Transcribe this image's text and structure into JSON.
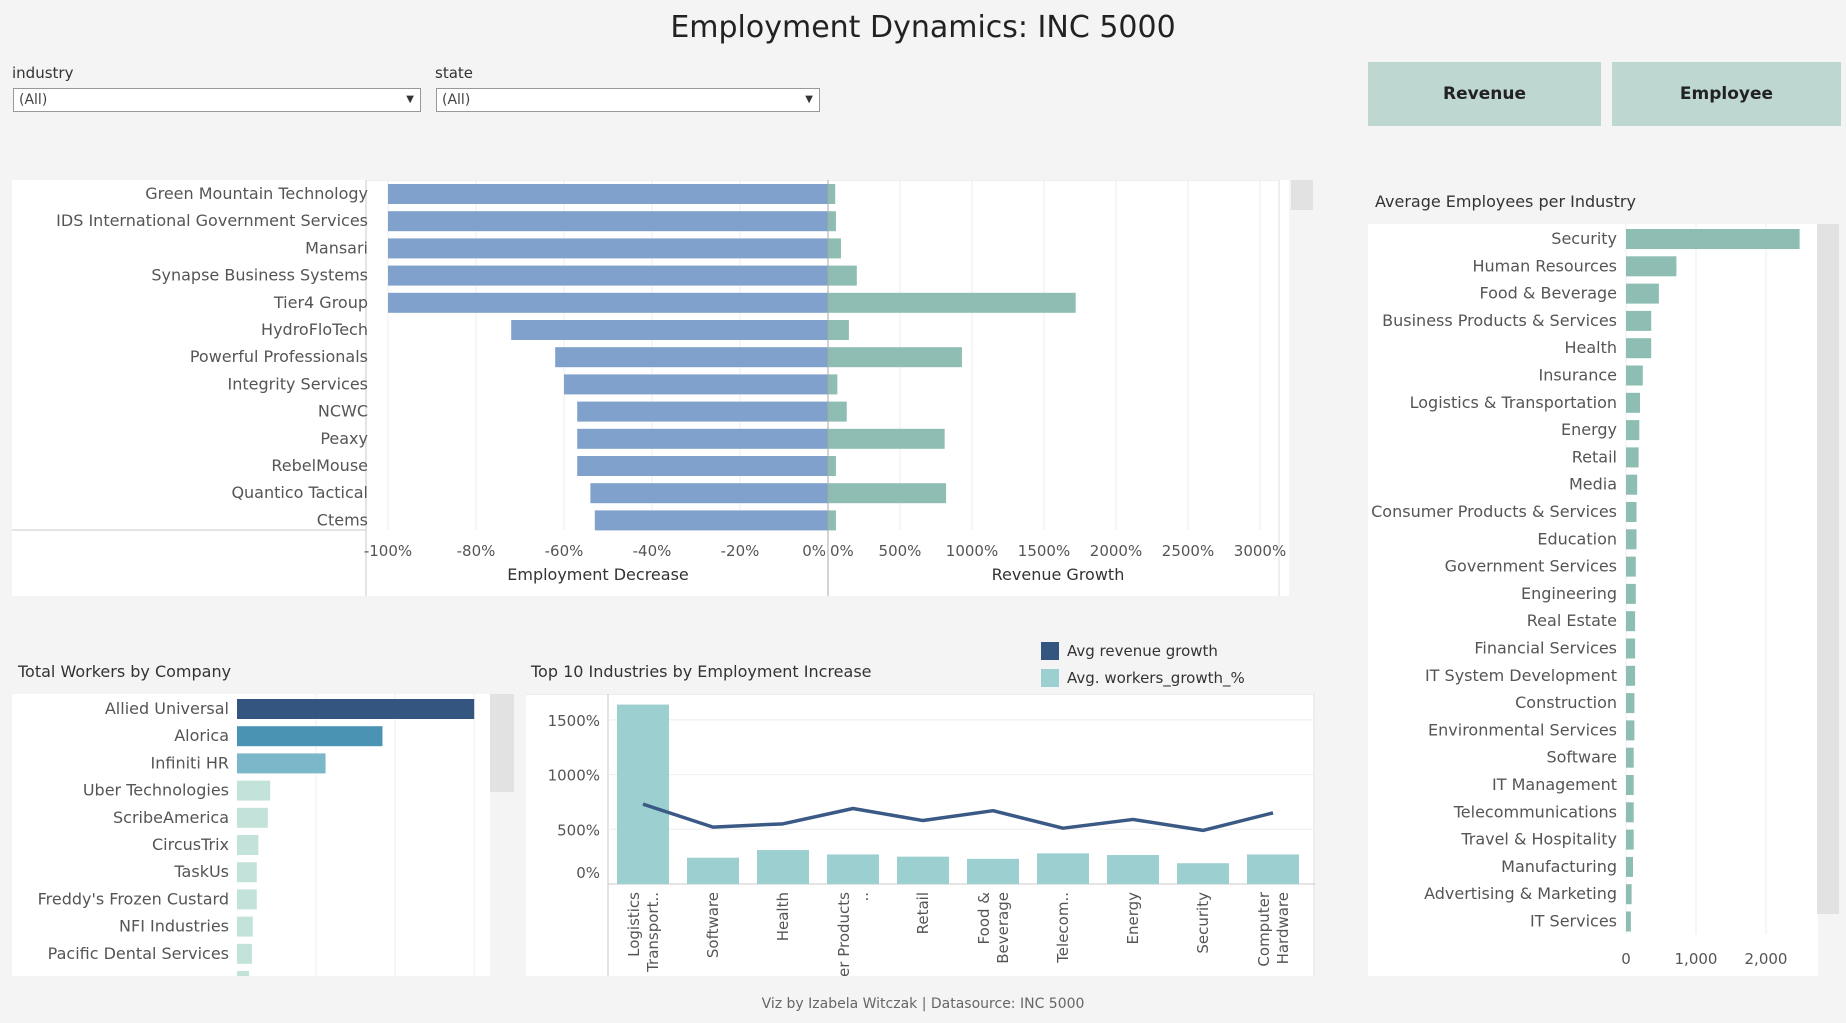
{
  "title": "Employment Dynamics: INC 5000",
  "filters": [
    {
      "label": "industry",
      "value": "(All)"
    },
    {
      "label": "state",
      "value": "(All)"
    }
  ],
  "buttons": {
    "revenue": "Revenue",
    "employee": "Employee"
  },
  "footer": "Viz by Izabela Witczak | Datasource: INC 5000",
  "colors": {
    "decrease_bar": "#7fa1cb",
    "growth_bar": "#8dbdb3",
    "industry_bar": "#8dbdb3",
    "line": "#3a5a85",
    "column": "#9ccfcf",
    "button_bg": "#bfd7d1"
  },
  "chart_data": [
    {
      "id": "diverging",
      "type": "bar",
      "categories": [
        "Green Mountain Technology",
        "IDS International Government Services",
        "Mansari",
        "Synapse Business Systems",
        "Tier4 Group",
        "HydroFloTech",
        "Powerful Professionals",
        "Integrity Services",
        "NCWC",
        "Peaxy",
        "RebelMouse",
        "Quantico Tactical",
        "Ctems"
      ],
      "series": [
        {
          "name": "Employment Decrease",
          "values": [
            -100,
            -100,
            -100,
            -100,
            -100,
            -72,
            -62,
            -60,
            -57,
            -57,
            -57,
            -54,
            -53
          ]
        },
        {
          "name": "Revenue Growth",
          "values": [
            50,
            55,
            90,
            200,
            1720,
            145,
            930,
            65,
            130,
            810,
            55,
            820,
            55
          ]
        }
      ],
      "left_ticks": [
        "-100%",
        "-80%",
        "-60%",
        "-40%",
        "-20%",
        "0%"
      ],
      "right_ticks": [
        "0%",
        "500%",
        "1000%",
        "1500%",
        "2000%",
        "2500%",
        "3000%"
      ],
      "xlabel_left": "Employment Decrease",
      "xlabel_right": "Revenue Growth",
      "xlim_left": [
        -100,
        0
      ],
      "xlim_right": [
        0,
        3000
      ]
    },
    {
      "id": "avg_employees",
      "type": "bar",
      "title": "Average Employees per Industry",
      "categories": [
        "Security",
        "Human Resources",
        "Food & Beverage",
        "Business Products & Services",
        "Health",
        "Insurance",
        "Logistics & Transportation",
        "Energy",
        "Retail",
        "Media",
        "Consumer Products & Services",
        "Education",
        "Government Services",
        "Engineering",
        "Real Estate",
        "Financial Services",
        "IT System Development",
        "Construction",
        "Environmental Services",
        "Software",
        "IT Management",
        "Telecommunications",
        "Travel & Hospitality",
        "Manufacturing",
        "Advertising & Marketing",
        "IT Services"
      ],
      "values": [
        2480,
        720,
        470,
        360,
        360,
        240,
        200,
        190,
        180,
        160,
        150,
        150,
        140,
        140,
        130,
        130,
        130,
        120,
        120,
        110,
        110,
        110,
        110,
        100,
        80,
        70
      ],
      "ticks": [
        "0",
        "1,000",
        "2,000"
      ],
      "xlim": [
        0,
        2600
      ]
    },
    {
      "id": "total_workers",
      "type": "bar",
      "title": "Total Workers by Company",
      "categories": [
        "Allied Universal",
        "Alorica",
        "Infiniti HR",
        "Uber Technologies",
        "ScribeAmerica",
        "CircusTrix",
        "TaskUs",
        "Freddy's Frozen Custard",
        "NFI Industries",
        "Pacific Dental Services"
      ],
      "values": [
        150000,
        92000,
        56000,
        21000,
        19500,
        13500,
        12500,
        12500,
        10000,
        9500
      ],
      "bar_colors": [
        "#34557f",
        "#4a93b3",
        "#7ab8c9",
        "#c3e3da",
        "#c3e3da",
        "#c3e3da",
        "#c3e3da",
        "#c3e3da",
        "#c3e3da",
        "#c3e3da"
      ],
      "xlim": [
        0,
        160000
      ]
    },
    {
      "id": "top10",
      "type": "bar",
      "title": "Top 10 Industries by Employment Increase",
      "categories": [
        "Logistics & Transport..",
        "Software",
        "Health",
        "Consumer Products ..",
        "Retail",
        "Food & Beverage",
        "Telecom..",
        "Energy",
        "Security",
        "Computer Hardware"
      ],
      "series": [
        {
          "name": "Avg. workers_growth_%",
          "values": [
            1640,
            240,
            310,
            270,
            250,
            230,
            280,
            265,
            190,
            270
          ]
        },
        {
          "name": "Avg revenue growth",
          "values": [
            730,
            520,
            550,
            690,
            580,
            670,
            510,
            590,
            490,
            650
          ]
        }
      ],
      "yticks": [
        "0%",
        "500%",
        "1000%",
        "1500%"
      ],
      "ylim": [
        0,
        1700
      ]
    }
  ]
}
